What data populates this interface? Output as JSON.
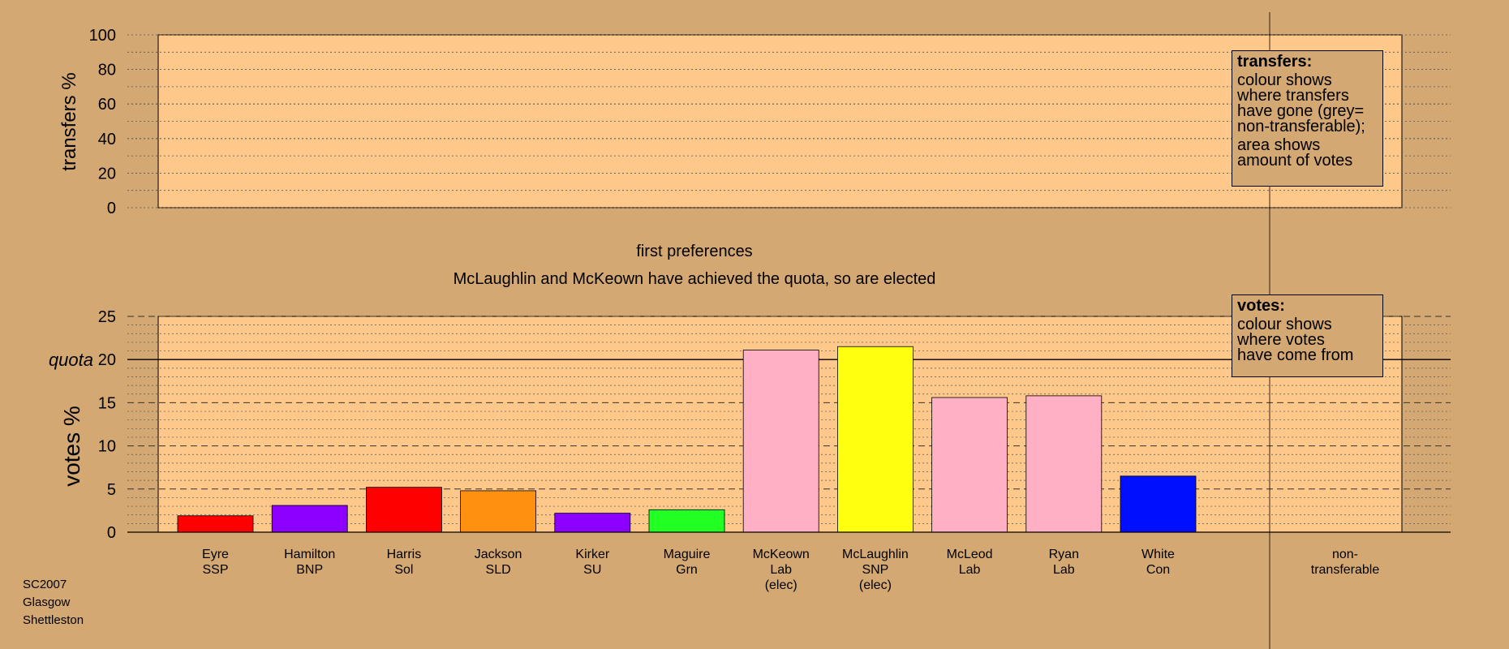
{
  "colors": {
    "background": "#d4a872",
    "plot_area": "#fdc88a",
    "gridline": "#555555",
    "SSP": "#ff0000",
    "BNP": "#8b00ff",
    "Sol": "#ff0000",
    "SLD": "#ff9010",
    "SU": "#8b00ff",
    "Grn": "#22ff22",
    "Lab": "#ffb0c4",
    "SNP": "#ffff10",
    "Con": "#0010ff"
  },
  "top_panel": {
    "ylabel": "transfers %",
    "ticks": [
      "0",
      "20",
      "40",
      "60",
      "80",
      "100"
    ],
    "legend": {
      "title": "transfers:",
      "para1": [
        "colour shows",
        "where transfers",
        "have gone (grey=",
        "non-transferable);"
      ],
      "para2": [
        "area shows",
        "amount of votes"
      ]
    }
  },
  "titles": {
    "line1": "first preferences",
    "line2": "McLaughlin and McKeown have achieved the quota, so are elected"
  },
  "bottom_panel": {
    "ylabel": "votes %",
    "quota_label": "quota",
    "ticks": [
      "0",
      "5",
      "10",
      "15",
      "20",
      "25"
    ],
    "legend": {
      "title": "votes:",
      "para1": [
        "colour shows",
        "where votes",
        "have come from"
      ]
    }
  },
  "footer": [
    "SC2007",
    "Glasgow",
    "Shettleston"
  ],
  "chart_data": {
    "type": "bar",
    "ylim": [
      0,
      25
    ],
    "quota": 20,
    "ylabel": "votes %",
    "categories": [
      {
        "name": "Eyre",
        "party": "SSP",
        "note": ""
      },
      {
        "name": "Hamilton",
        "party": "BNP",
        "note": ""
      },
      {
        "name": "Harris",
        "party": "Sol",
        "note": ""
      },
      {
        "name": "Jackson",
        "party": "SLD",
        "note": ""
      },
      {
        "name": "Kirker",
        "party": "SU",
        "note": ""
      },
      {
        "name": "Maguire",
        "party": "Grn",
        "note": ""
      },
      {
        "name": "McKeown",
        "party": "Lab",
        "note": "(elec)"
      },
      {
        "name": "McLaughlin",
        "party": "SNP",
        "note": "(elec)"
      },
      {
        "name": "McLeod",
        "party": "Lab",
        "note": ""
      },
      {
        "name": "Ryan",
        "party": "Lab",
        "note": ""
      },
      {
        "name": "White",
        "party": "Con",
        "note": ""
      }
    ],
    "values": [
      1.9,
      3.1,
      5.2,
      4.8,
      2.2,
      2.6,
      21.1,
      21.5,
      15.6,
      15.8,
      6.5
    ],
    "extra_column": [
      "non-",
      "transferable"
    ]
  }
}
